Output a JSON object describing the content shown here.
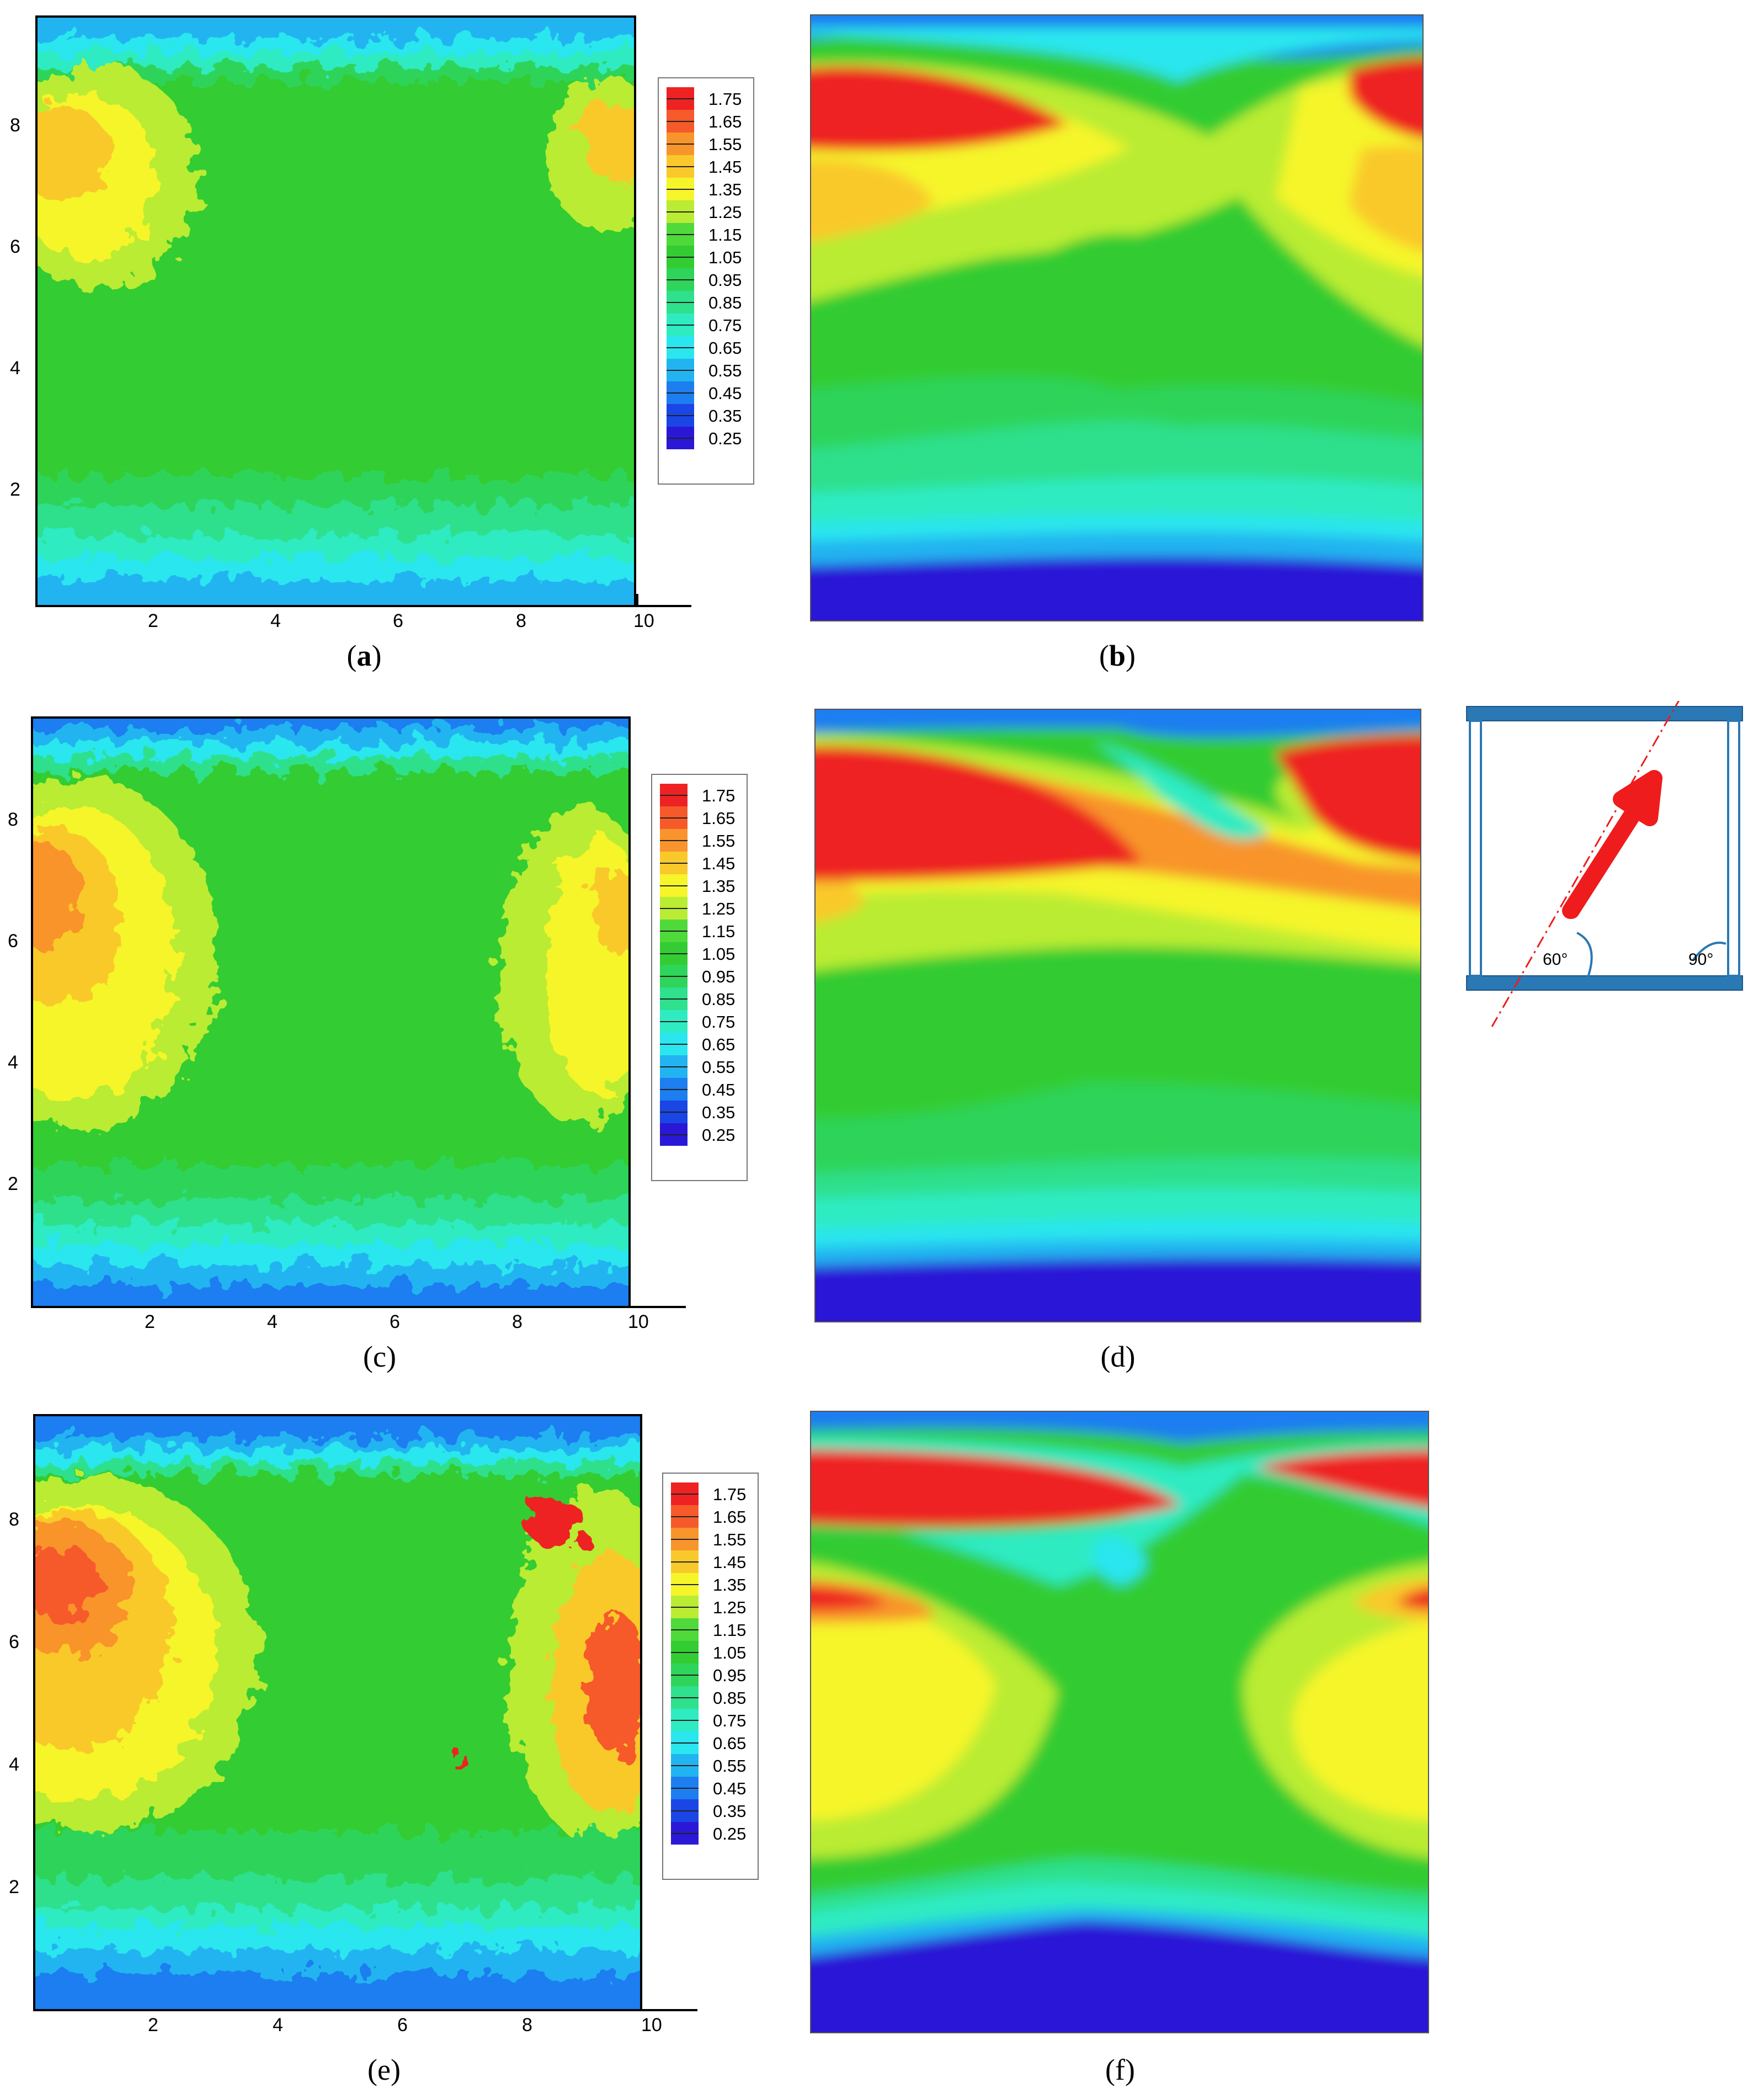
{
  "figure": {
    "captions": [
      "a",
      "b",
      "c",
      "d",
      "e",
      "f"
    ],
    "colorbar": {
      "levels": [
        "1.75",
        "1.65",
        "1.55",
        "1.45",
        "1.35",
        "1.25",
        "1.15",
        "1.05",
        "0.95",
        "0.85",
        "0.75",
        "0.65",
        "0.55",
        "0.45",
        "0.35",
        "0.25"
      ],
      "colors": [
        "#ee2222",
        "#f65a2a",
        "#f8942c",
        "#f9c92c",
        "#f5f52a",
        "#b9ec33",
        "#4fd93a",
        "#33cc33",
        "#2fd45a",
        "#2fe08c",
        "#2febc2",
        "#2ae6ee",
        "#22b4f0",
        "#1d7ef0",
        "#1a46e6",
        "#2a18d6"
      ]
    },
    "x_ticks": [
      "2",
      "4",
      "6",
      "8",
      "10"
    ],
    "y_ticks": [
      "8",
      "6",
      "4",
      "2"
    ],
    "inset": {
      "angle_left": "60°",
      "angle_right": "90°",
      "arrow_color": "#ee1c1c",
      "frame_color": "#2a78b4"
    }
  },
  "chart_data": [
    {
      "panel": "a",
      "type": "heatmap",
      "source": "measured",
      "xlim": [
        0,
        10.8
      ],
      "ylim": [
        0,
        9.8
      ],
      "x_ticks": [
        2,
        4,
        6,
        8,
        10
      ],
      "y_ticks": [
        2,
        4,
        6,
        8
      ],
      "colorbar_range": [
        0.25,
        1.75
      ],
      "colorbar_step": 0.1
    },
    {
      "panel": "b",
      "type": "heatmap",
      "source": "simulated",
      "colorbar_range": [
        0.25,
        1.75
      ]
    },
    {
      "panel": "c",
      "type": "heatmap",
      "source": "measured",
      "xlim": [
        0,
        10.8
      ],
      "ylim": [
        0,
        9.8
      ],
      "x_ticks": [
        2,
        4,
        6,
        8,
        10
      ],
      "y_ticks": [
        2,
        4,
        6,
        8
      ],
      "colorbar_range": [
        0.25,
        1.75
      ],
      "colorbar_step": 0.1
    },
    {
      "panel": "d",
      "type": "heatmap",
      "source": "simulated",
      "colorbar_range": [
        0.25,
        1.75
      ]
    },
    {
      "panel": "e",
      "type": "heatmap",
      "source": "measured",
      "xlim": [
        0,
        10.8
      ],
      "ylim": [
        0,
        9.8
      ],
      "x_ticks": [
        2,
        4,
        6,
        8,
        10
      ],
      "y_ticks": [
        2,
        4,
        6,
        8
      ],
      "colorbar_range": [
        0.25,
        1.75
      ],
      "colorbar_step": 0.1
    },
    {
      "panel": "f",
      "type": "heatmap",
      "source": "simulated",
      "colorbar_range": [
        0.25,
        1.75
      ]
    }
  ]
}
